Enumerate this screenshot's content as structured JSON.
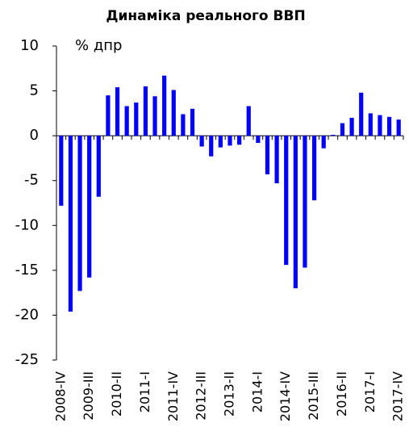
{
  "chart_data": {
    "type": "bar",
    "title": "Динаміка реального ВВП",
    "annotation": "% дпр",
    "categories": [
      "2008-IV",
      null,
      null,
      "2009-III",
      null,
      null,
      "2010-II",
      null,
      null,
      "2011-I",
      null,
      null,
      "2011-IV",
      null,
      null,
      "2012-III",
      null,
      null,
      "2013-II",
      null,
      null,
      "2014-I",
      null,
      null,
      "2014-IV",
      null,
      null,
      "2015-III",
      null,
      null,
      "2016-II",
      null,
      null,
      "2017-I",
      null,
      null,
      "2017-IV"
    ],
    "values": [
      -7.8,
      -19.6,
      -17.3,
      -15.8,
      -6.8,
      4.5,
      5.4,
      3.3,
      3.7,
      5.5,
      4.4,
      6.7,
      5.1,
      2.4,
      3.0,
      -1.2,
      -2.3,
      -1.3,
      -1.1,
      -1.0,
      3.3,
      -0.8,
      -4.3,
      -5.3,
      -14.4,
      -17.0,
      -14.7,
      -7.2,
      -1.4,
      0.1,
      1.4,
      2.0,
      4.8,
      2.5,
      2.3,
      2.1,
      1.8
    ],
    "color": "#0000ff",
    "ylim": [
      -25,
      10
    ],
    "yticks": [
      -25,
      -20,
      -15,
      -10,
      -5,
      0,
      5,
      10
    ],
    "grid": false
  }
}
